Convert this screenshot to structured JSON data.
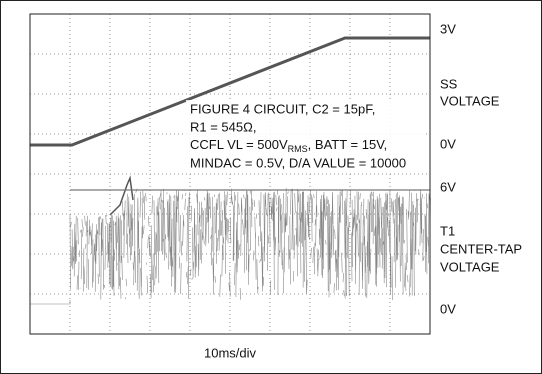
{
  "labels": {
    "ss_top": "3V",
    "ss_name_1": "SS",
    "ss_name_2": "VOLTAGE",
    "ss_zero": "0V",
    "t1_top": "6V",
    "t1_name_1": "T1",
    "t1_name_2": "CENTER-TAP",
    "t1_name_3": "VOLTAGE",
    "t1_zero": "0V",
    "time_scale": "10ms/div"
  },
  "annotation": {
    "line1": "FIGURE 4 CIRCUIT, C2 = 15pF,",
    "line2": "R1 = 545Ω,",
    "line3_a": "CCFL VL = 500V",
    "line3_sub": "RMS",
    "line3_b": ", BATT = 15V,",
    "line4": "MINDAC = 0.5V, D/A VALUE = 10000"
  }
}
